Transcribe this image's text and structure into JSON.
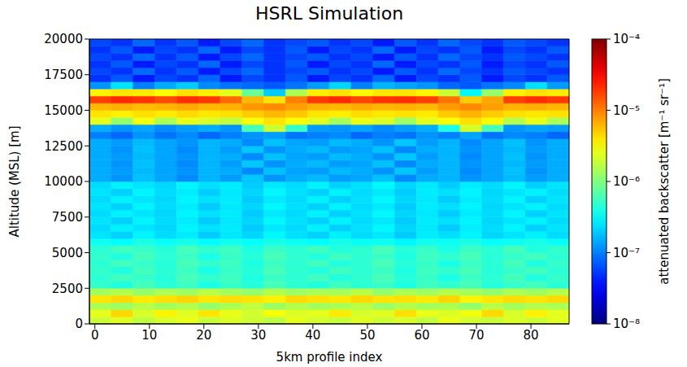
{
  "chart_data": {
    "type": "heatmap",
    "title": "HSRL Simulation",
    "x_label": "5km profile index",
    "y_label": "Altitude (MSL) [m]",
    "xlim": [
      -1,
      87
    ],
    "xticks": [
      0,
      10,
      20,
      30,
      40,
      50,
      60,
      70,
      80
    ],
    "ylim": [
      0,
      20000
    ],
    "yticks": [
      0,
      2500,
      5000,
      7500,
      10000,
      12500,
      15000,
      17500,
      20000
    ],
    "x_edges": [
      -1,
      3,
      7,
      11,
      15,
      19,
      23,
      27,
      31,
      35,
      39,
      43,
      47,
      51,
      55,
      59,
      63,
      67,
      71,
      75,
      79,
      83,
      87
    ],
    "y_edges": [
      0,
      500,
      1000,
      1500,
      2000,
      2500,
      3000,
      3500,
      4000,
      4500,
      5000,
      5500,
      6000,
      6500,
      7000,
      7500,
      8000,
      8500,
      9000,
      9500,
      10000,
      10500,
      11000,
      11500,
      12000,
      12500,
      13000,
      13500,
      14000,
      14500,
      15000,
      15500,
      16000,
      16500,
      17000,
      17500,
      18000,
      18500,
      19000,
      19500,
      20000
    ],
    "cells": [
      [
        2e-06,
        2.4e-06,
        1.8e-06,
        2.2e-06,
        2.6e-06,
        1.9e-06,
        2.3e-06,
        2e-06,
        1.7e-06,
        2.5e-06,
        2.1e-06,
        1.9e-06,
        2.4e-06,
        2e-06,
        2.2e-06,
        1.8e-06,
        2.6e-06,
        2.1e-06,
        1.9e-06,
        2.3e-06,
        2e-06,
        2.4e-06
      ],
      [
        2.5e-06,
        4.5e-06,
        2.2e-06,
        3.5e-06,
        2.4e-06,
        4e-06,
        2.6e-06,
        2.1e-06,
        3e-06,
        2.3e-06,
        2.5e-06,
        3.8e-06,
        2.2e-06,
        2.4e-06,
        4.2e-06,
        2.6e-06,
        2.3e-06,
        2.8e-06,
        4.4e-06,
        2.2e-06,
        3.6e-06,
        2.5e-06
      ],
      [
        1.5e-06,
        1.3e-06,
        1.7e-06,
        1.4e-06,
        1.6e-06,
        1.2e-06,
        1.5e-06,
        1.8e-06,
        1.3e-06,
        1.6e-06,
        1.4e-06,
        1.5e-06,
        1.7e-06,
        1.3e-06,
        1.6e-06,
        1.4e-06,
        1.5e-06,
        1.2e-06,
        1.7e-06,
        1.4e-06,
        1.6e-06,
        1.5e-06
      ],
      [
        4e-06,
        4.5e-06,
        3.8e-06,
        4.2e-06,
        4.6e-06,
        3.9e-06,
        4.3e-06,
        4e-06,
        3.6e-06,
        4.4e-06,
        4.1e-06,
        3.9e-06,
        4.5e-06,
        4e-06,
        4.2e-06,
        3.8e-06,
        4.6e-06,
        3.5e-06,
        3.9e-06,
        4.3e-06,
        4e-06,
        4.4e-06
      ],
      [
        1.4e-06,
        1.6e-06,
        1.2e-06,
        1.5e-06,
        1.3e-06,
        1.7e-06,
        1.4e-06,
        1.2e-06,
        1.6e-06,
        1.3e-06,
        1.5e-06,
        1.4e-06,
        1.7e-06,
        1.2e-06,
        1.5e-06,
        1.3e-06,
        1.6e-06,
        1.4e-06,
        1.2e-06,
        1.5e-06,
        1.3e-06,
        1.6e-06
      ],
      [
        5e-07,
        4.2e-07,
        5.8e-07,
        4.6e-07,
        5.4e-07,
        4e-07,
        5.2e-07,
        4.4e-07,
        6e-07,
        4.8e-07,
        4.3e-07,
        5.6e-07,
        4.7e-07,
        5.3e-07,
        4.1e-07,
        5.5e-07,
        4.9e-07,
        5.9e-07,
        4.4e-07,
        5.1e-07,
        5.7e-07,
        4.6e-07
      ],
      [
        4.6e-07,
        5.7e-07,
        5.1e-07,
        4.4e-07,
        5.9e-07,
        4.9e-07,
        5.5e-07,
        4.1e-07,
        5.3e-07,
        4.7e-07,
        5.6e-07,
        4.3e-07,
        4.8e-07,
        6e-07,
        4.4e-07,
        5.2e-07,
        4e-07,
        5.4e-07,
        4.6e-07,
        5.8e-07,
        4.2e-07,
        5e-07
      ],
      [
        5e-07,
        4.2e-07,
        5.8e-07,
        4.6e-07,
        5.4e-07,
        4e-07,
        5.2e-07,
        4.4e-07,
        6e-07,
        4.8e-07,
        4.3e-07,
        5.6e-07,
        4.7e-07,
        5.3e-07,
        4.1e-07,
        5.5e-07,
        4.9e-07,
        5.9e-07,
        4.4e-07,
        5.1e-07,
        5.7e-07,
        4.6e-07
      ],
      [
        4.6e-07,
        5.7e-07,
        5.1e-07,
        4.4e-07,
        5.9e-07,
        4.9e-07,
        5.5e-07,
        4.1e-07,
        5.3e-07,
        4.7e-07,
        5.6e-07,
        4.3e-07,
        4.8e-07,
        6e-07,
        4.4e-07,
        5.2e-07,
        4e-07,
        5.4e-07,
        4.6e-07,
        5.8e-07,
        4.2e-07,
        5e-07
      ],
      [
        5e-07,
        4.2e-07,
        5.8e-07,
        4.6e-07,
        5.4e-07,
        4e-07,
        5.2e-07,
        4.4e-07,
        6e-07,
        4.8e-07,
        4.3e-07,
        5.6e-07,
        4.7e-07,
        5.3e-07,
        4.1e-07,
        5.5e-07,
        4.9e-07,
        5.9e-07,
        4.4e-07,
        5.1e-07,
        5.7e-07,
        4.6e-07
      ],
      [
        4.6e-07,
        5.7e-07,
        5.1e-07,
        4.4e-07,
        5.9e-07,
        4.9e-07,
        5.5e-07,
        4.1e-07,
        5.3e-07,
        4.7e-07,
        5.6e-07,
        4.3e-07,
        4.8e-07,
        6e-07,
        4.4e-07,
        5.2e-07,
        4e-07,
        5.4e-07,
        4.6e-07,
        5.8e-07,
        4.2e-07,
        5e-07
      ],
      [
        3.6e-07,
        3.2e-07,
        4e-07,
        3.4e-07,
        3.8e-07,
        3.1e-07,
        3.7e-07,
        3.3e-07,
        3.9e-07,
        3.5e-07,
        3.2e-07,
        3.8e-07,
        3.4e-07,
        3.6e-07,
        3e-07,
        3.7e-07,
        3.5e-07,
        4e-07,
        3.3e-07,
        3.6e-07,
        3.9e-07,
        3.4e-07
      ],
      [
        2.5e-07,
        2.1e-07,
        2.9e-07,
        2.3e-07,
        2.7e-07,
        2e-07,
        2.6e-07,
        2.2e-07,
        3e-07,
        2.4e-07,
        2.1e-07,
        2.8e-07,
        2.3e-07,
        2.6e-07,
        2e-07,
        2.7e-07,
        2.4e-07,
        2.9e-07,
        2.2e-07,
        2.5e-07,
        2.8e-07,
        2.3e-07
      ],
      [
        2.3e-07,
        2.8e-07,
        2.5e-07,
        2.2e-07,
        2.9e-07,
        2.4e-07,
        2.7e-07,
        2e-07,
        2.6e-07,
        2.3e-07,
        2.8e-07,
        2.1e-07,
        2.4e-07,
        3e-07,
        2.2e-07,
        2.6e-07,
        2e-07,
        2.7e-07,
        2.3e-07,
        2.9e-07,
        2.1e-07,
        2.5e-07
      ],
      [
        2.5e-07,
        2.1e-07,
        2.9e-07,
        2.3e-07,
        2.7e-07,
        2e-07,
        2.6e-07,
        2.2e-07,
        3e-07,
        2.4e-07,
        2.1e-07,
        2.8e-07,
        2.3e-07,
        2.6e-07,
        2e-07,
        2.7e-07,
        2.4e-07,
        2.9e-07,
        2.2e-07,
        2.5e-07,
        2.8e-07,
        2.3e-07
      ],
      [
        2.3e-07,
        2.8e-07,
        2.5e-07,
        2.2e-07,
        2.9e-07,
        2.4e-07,
        2.7e-07,
        2e-07,
        2.6e-07,
        2.3e-07,
        2.8e-07,
        2.1e-07,
        2.4e-07,
        3e-07,
        2.2e-07,
        2.6e-07,
        2e-07,
        2.7e-07,
        2.3e-07,
        2.9e-07,
        2.1e-07,
        2.5e-07
      ],
      [
        2.5e-07,
        2.1e-07,
        2.9e-07,
        2.3e-07,
        2.7e-07,
        2e-07,
        2.6e-07,
        2.2e-07,
        3e-07,
        2.4e-07,
        2.1e-07,
        2.8e-07,
        2.3e-07,
        2.6e-07,
        2e-07,
        2.7e-07,
        2.4e-07,
        2.9e-07,
        2.2e-07,
        2.5e-07,
        2.8e-07,
        2.3e-07
      ],
      [
        2.3e-07,
        2.8e-07,
        2.5e-07,
        2.2e-07,
        2.9e-07,
        2.4e-07,
        2.7e-07,
        2e-07,
        2.6e-07,
        2.3e-07,
        2.8e-07,
        2.1e-07,
        2.4e-07,
        3e-07,
        2.2e-07,
        2.6e-07,
        2e-07,
        2.7e-07,
        2.3e-07,
        2.9e-07,
        2.1e-07,
        2.5e-07
      ],
      [
        2.5e-07,
        2.1e-07,
        2.9e-07,
        2.3e-07,
        2.7e-07,
        2e-07,
        2.6e-07,
        2.2e-07,
        3e-07,
        2.4e-07,
        2.1e-07,
        2.8e-07,
        2.3e-07,
        2.6e-07,
        2e-07,
        2.7e-07,
        2.4e-07,
        2.9e-07,
        2.2e-07,
        2.5e-07,
        2.8e-07,
        2.3e-07
      ],
      [
        2.3e-07,
        2.8e-07,
        2.5e-07,
        2.2e-07,
        2.9e-07,
        2.4e-07,
        2.7e-07,
        2e-07,
        2.6e-07,
        2.3e-07,
        2.8e-07,
        2.1e-07,
        2.4e-07,
        3e-07,
        2.2e-07,
        2.6e-07,
        2e-07,
        2.7e-07,
        2.3e-07,
        2.9e-07,
        2.1e-07,
        2.5e-07
      ],
      [
        1.5e-07,
        1.2e-07,
        1.8e-07,
        1.4e-07,
        1.1e-07,
        1.6e-07,
        1.3e-07,
        1.9e-07,
        1.2e-07,
        1.5e-07,
        1.7e-07,
        1.3e-07,
        1.4e-07,
        1.8e-07,
        1.1e-07,
        1.5e-07,
        1.6e-07,
        1.2e-07,
        1.4e-07,
        1.7e-07,
        1.3e-07,
        1.5e-07
      ],
      [
        1.5e-07,
        1.3e-07,
        1.7e-07,
        1.4e-07,
        1.2e-07,
        1.6e-07,
        1.5e-07,
        1.1e-07,
        1.8e-07,
        1.4e-07,
        1.3e-07,
        1.7e-07,
        1.5e-07,
        1.2e-07,
        1.9e-07,
        1.3e-07,
        1.6e-07,
        1.1e-07,
        1.4e-07,
        1.8e-07,
        1.2e-07,
        1.5e-07
      ],
      [
        1.5e-07,
        1.2e-07,
        1.8e-07,
        1.4e-07,
        1.1e-07,
        1.6e-07,
        1.3e-07,
        1.9e-07,
        1.2e-07,
        1.5e-07,
        1.7e-07,
        1.3e-07,
        1.4e-07,
        1.8e-07,
        1.1e-07,
        1.5e-07,
        1.6e-07,
        1.2e-07,
        1.4e-07,
        1.7e-07,
        1.3e-07,
        1.5e-07
      ],
      [
        1.5e-07,
        1.3e-07,
        1.7e-07,
        1.4e-07,
        1.2e-07,
        1.6e-07,
        1.5e-07,
        1.1e-07,
        1.8e-07,
        1.4e-07,
        1.3e-07,
        1.7e-07,
        1.5e-07,
        1.2e-07,
        1.9e-07,
        1.3e-07,
        1.6e-07,
        1.1e-07,
        1.4e-07,
        1.8e-07,
        1.2e-07,
        1.5e-07
      ],
      [
        1.5e-07,
        1.2e-07,
        1.8e-07,
        1.4e-07,
        1.1e-07,
        1.6e-07,
        1.3e-07,
        1.9e-07,
        1.2e-07,
        1.5e-07,
        1.7e-07,
        1.3e-07,
        1.4e-07,
        1.8e-07,
        1.1e-07,
        1.5e-07,
        1.6e-07,
        1.2e-07,
        1.4e-07,
        1.7e-07,
        1.3e-07,
        1.5e-07
      ],
      [
        1.5e-07,
        1.3e-07,
        1.7e-07,
        1.4e-07,
        1.2e-07,
        1.6e-07,
        1.5e-07,
        1.1e-07,
        1.8e-07,
        1.4e-07,
        1.3e-07,
        1.7e-07,
        1.5e-07,
        1.2e-07,
        1.9e-07,
        1.3e-07,
        1.6e-07,
        1.1e-07,
        1.4e-07,
        1.8e-07,
        1.2e-07,
        1.5e-07
      ],
      [
        1e-07,
        8e-08,
        1.2e-07,
        9e-08,
        1.1e-07,
        8e-08,
        1e-07,
        1.2e-07,
        1.3e-07,
        9e-08,
        1e-07,
        1.1e-07,
        8e-08,
        1e-07,
        9e-08,
        1.2e-07,
        1e-07,
        1.4e-07,
        9e-08,
        1.1e-07,
        1e-07,
        8e-08
      ],
      [
        1.5e-07,
        1.2e-07,
        1.4e-07,
        1.1e-07,
        1.3e-07,
        1.5e-07,
        1.2e-07,
        6e-07,
        2e-06,
        5e-07,
        1.3e-07,
        1.2e-07,
        1.4e-07,
        1.1e-07,
        1.3e-07,
        1.5e-07,
        4e-07,
        2.2e-06,
        6e-07,
        1.2e-07,
        1.4e-07,
        1.3e-07
      ],
      [
        2.5e-06,
        1.2e-06,
        2.8e-06,
        1.5e-06,
        2.6e-06,
        2.2e-06,
        1.8e-06,
        3e-06,
        4e-06,
        3.2e-06,
        2.4e-06,
        1.4e-06,
        2.7e-06,
        2.3e-06,
        1.3e-06,
        2.5e-06,
        3.1e-06,
        4.2e-06,
        3.3e-06,
        1.6e-06,
        2.6e-06,
        1.5e-06
      ],
      [
        4e-06,
        3.6e-06,
        4.2e-06,
        3.8e-06,
        4.4e-06,
        3.9e-06,
        4.1e-06,
        5e-06,
        6e-06,
        5.2e-06,
        4e-06,
        3.7e-06,
        4.3e-06,
        3.9e-06,
        4.1e-06,
        3.8e-06,
        5.1e-06,
        6.2e-06,
        5e-06,
        4.2e-06,
        3.9e-06,
        4.1e-06
      ],
      [
        6e-06,
        6.5e-06,
        5.8e-06,
        6.2e-06,
        6.8e-06,
        6e-06,
        6.4e-06,
        8e-06,
        9e-06,
        7.5e-06,
        6.3e-06,
        5.9e-06,
        6.6e-06,
        6.1e-06,
        6.4e-06,
        6e-06,
        7.8e-06,
        9.2e-06,
        7.6e-06,
        6.2e-06,
        6.5e-06,
        6e-06
      ],
      [
        1.8e-05,
        2.2e-05,
        2e-05,
        1.6e-05,
        2.1e-05,
        1.9e-05,
        1.2e-05,
        6e-06,
        4e-06,
        1e-05,
        1.9e-05,
        2.2e-05,
        1.7e-05,
        2e-05,
        2.1e-05,
        1.8e-05,
        1.1e-05,
        5e-06,
        7e-06,
        1.8e-05,
        2.1e-05,
        1.9e-05
      ],
      [
        3.5e-06,
        4e-06,
        3.8e-06,
        3.2e-06,
        4.2e-06,
        3.6e-06,
        2.5e-06,
        8e-07,
        2e-07,
        1.5e-06,
        3.7e-06,
        4.1e-06,
        3.3e-06,
        3.9e-06,
        4e-06,
        3.4e-06,
        2e-06,
        3e-07,
        1.2e-06,
        3.6e-06,
        4.2e-06,
        3.8e-06
      ],
      [
        1.2e-07,
        2.5e-07,
        1e-07,
        1.5e-07,
        2e-07,
        1.1e-07,
        9e-08,
        8e-08,
        7e-08,
        9e-08,
        1.3e-07,
        2.2e-07,
        1e-07,
        1.6e-07,
        1.4e-07,
        1.2e-07,
        8e-08,
        7e-08,
        9e-08,
        1.1e-07,
        2.4e-07,
        1.3e-07
      ],
      [
        5e-08,
        7e-08,
        4e-08,
        6e-08,
        5e-08,
        8e-08,
        4e-08,
        6e-08,
        5e-08,
        7e-08,
        4e-08,
        6e-08,
        5e-08,
        8e-08,
        4e-08,
        6e-08,
        5e-08,
        7e-08,
        4e-08,
        6e-08,
        5e-08,
        7e-08
      ],
      [
        6e-08,
        5e-08,
        8e-08,
        5e-08,
        7e-08,
        4e-08,
        6e-08,
        8e-08,
        5e-08,
        6e-08,
        7e-08,
        5e-08,
        6e-08,
        4e-08,
        7e-08,
        5e-08,
        8e-08,
        6e-08,
        5e-08,
        7e-08,
        6e-08,
        5e-08
      ],
      [
        5e-08,
        7e-08,
        4e-08,
        6e-08,
        5e-08,
        8e-08,
        4e-08,
        6e-08,
        5e-08,
        7e-08,
        4e-08,
        6e-08,
        5e-08,
        8e-08,
        4e-08,
        6e-08,
        5e-08,
        7e-08,
        4e-08,
        6e-08,
        5e-08,
        7e-08
      ],
      [
        6e-08,
        5e-08,
        8e-08,
        5e-08,
        7e-08,
        4e-08,
        6e-08,
        8e-08,
        5e-08,
        6e-08,
        7e-08,
        5e-08,
        6e-08,
        4e-08,
        7e-08,
        5e-08,
        8e-08,
        6e-08,
        5e-08,
        7e-08,
        6e-08,
        5e-08
      ],
      [
        5e-08,
        7e-08,
        4e-08,
        6e-08,
        5e-08,
        8e-08,
        4e-08,
        6e-08,
        5e-08,
        7e-08,
        4e-08,
        6e-08,
        5e-08,
        8e-08,
        4e-08,
        6e-08,
        5e-08,
        7e-08,
        4e-08,
        6e-08,
        5e-08,
        7e-08
      ],
      [
        6e-08,
        5e-08,
        8e-08,
        5e-08,
        7e-08,
        4e-08,
        6e-08,
        8e-08,
        5e-08,
        6e-08,
        7e-08,
        5e-08,
        6e-08,
        4e-08,
        7e-08,
        5e-08,
        8e-08,
        6e-08,
        5e-08,
        7e-08,
        6e-08,
        5e-08
      ]
    ],
    "colorbar": {
      "label": "attenuated backscatter [m⁻¹ sr⁻¹]",
      "range": [
        1e-08,
        0.0001
      ],
      "log": true,
      "ticks": [
        {
          "value": 1e-08,
          "label": "10⁻⁸"
        },
        {
          "value": 1e-07,
          "label": "10⁻⁷"
        },
        {
          "value": 1e-06,
          "label": "10⁻⁶"
        },
        {
          "value": 1e-05,
          "label": "10⁻⁵"
        },
        {
          "value": 0.0001,
          "label": "10⁻⁴"
        }
      ]
    }
  }
}
